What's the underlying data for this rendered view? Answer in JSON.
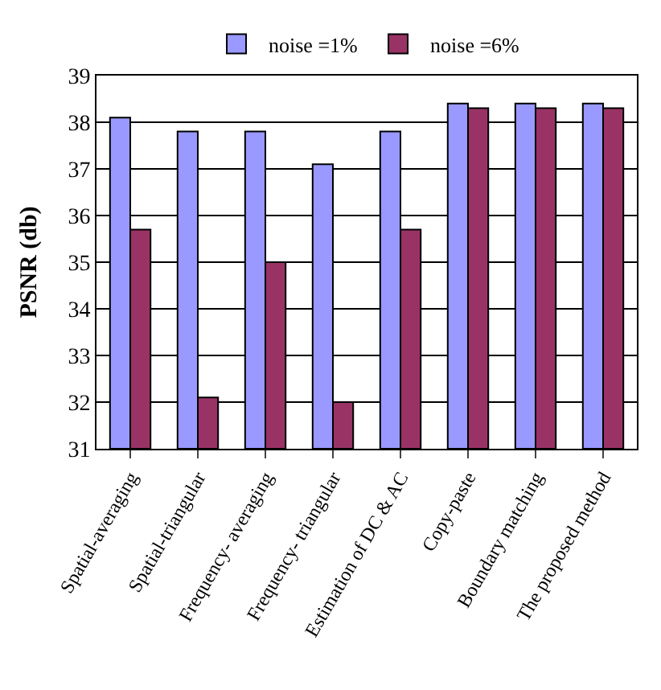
{
  "chart_data": {
    "type": "bar",
    "ylabel": "PSNR (db)",
    "categories": [
      "Spatial-averaging",
      "Spatial-triangular",
      "Frequency- averaging",
      "Frequency- triangular",
      "Estimation of DC & AC",
      "Copy-paste",
      "Boundary matching",
      "The proposed method"
    ],
    "series": [
      {
        "name": "noise =1%",
        "color": "#9999ff",
        "values": [
          38.1,
          37.8,
          37.8,
          37.1,
          37.8,
          38.4,
          38.4,
          38.4
        ]
      },
      {
        "name": "noise =6%",
        "color": "#993366",
        "values": [
          35.7,
          32.1,
          35.0,
          32.0,
          35.7,
          38.3,
          38.3,
          38.3
        ]
      }
    ],
    "ylim": [
      31,
      39
    ],
    "yticks": [
      31,
      32,
      33,
      34,
      35,
      36,
      37,
      38,
      39
    ],
    "grid": "y",
    "legend": "top"
  }
}
